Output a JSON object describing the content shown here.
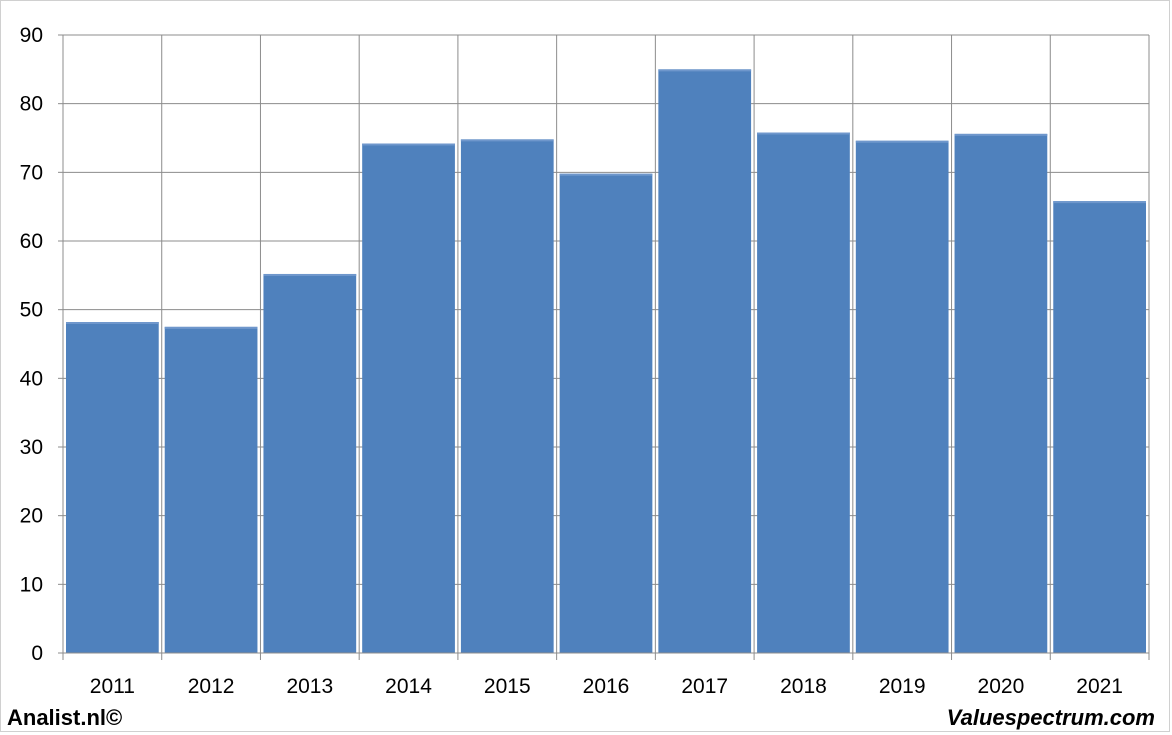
{
  "chart_data": {
    "type": "bar",
    "categories": [
      "2011",
      "2012",
      "2013",
      "2014",
      "2015",
      "2016",
      "2017",
      "2018",
      "2019",
      "2020",
      "2021"
    ],
    "values": [
      48.2,
      47.5,
      55.2,
      74.2,
      74.8,
      69.8,
      85.0,
      75.8,
      74.6,
      75.6,
      65.8
    ],
    "title": "",
    "xlabel": "",
    "ylabel": "",
    "ylim": [
      0,
      90
    ],
    "yticks": [
      0,
      10,
      20,
      30,
      40,
      50,
      60,
      70,
      80,
      90
    ],
    "grid": true,
    "bar_color": "#4f81bd"
  },
  "footer": {
    "left": "Analist.nl©",
    "right": "Valuespectrum.com"
  }
}
